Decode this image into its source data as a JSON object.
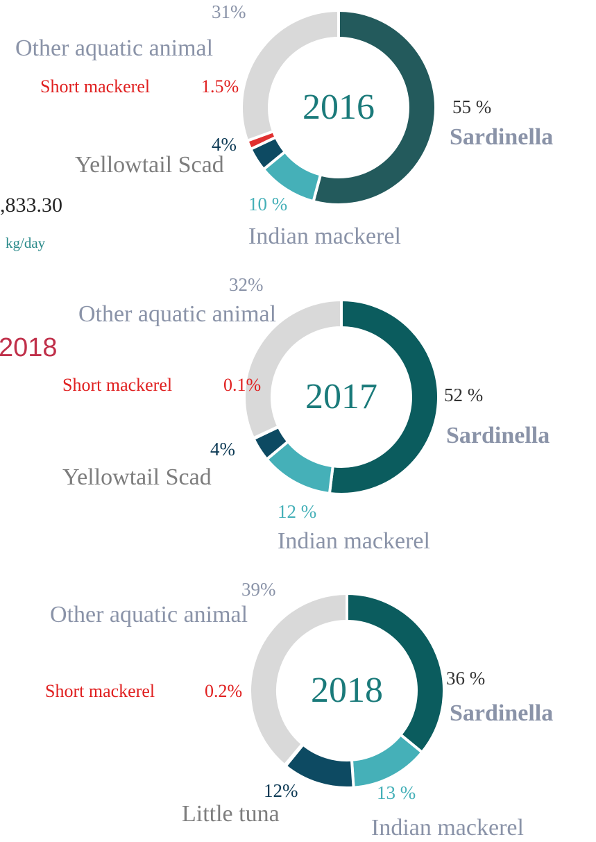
{
  "chart_data": [
    {
      "type": "pie",
      "donut": true,
      "center_label": "2016",
      "categories": [
        "Sardinella",
        "Indian  mackerel",
        "Yellowtail Scad",
        "Short mackerel",
        "Other aquatic animal"
      ],
      "values": [
        55,
        10,
        4,
        1.5,
        31
      ],
      "value_labels": [
        "55 %",
        "10 %",
        "4%",
        "1.5%",
        "31%"
      ],
      "colors": [
        "#235a5c",
        "#45b0b8",
        "#0d4a62",
        "#e03030",
        "#d9d9d9"
      ]
    },
    {
      "type": "pie",
      "donut": true,
      "center_label": "2017",
      "categories": [
        "Sardinella",
        "Indian  mackerel",
        "Yellowtail Scad",
        "Short mackerel",
        "Other aquatic animal"
      ],
      "values": [
        52,
        12,
        4,
        0.1,
        32
      ],
      "value_labels": [
        "52 %",
        "12 %",
        "4%",
        "0.1%",
        "32%"
      ],
      "colors": [
        "#0b5c5e",
        "#45b0b8",
        "#0d4a62",
        "#e03030",
        "#d9d9d9"
      ]
    },
    {
      "type": "pie",
      "donut": true,
      "center_label": "2018",
      "categories": [
        "Sardinella",
        "Indian  mackerel",
        "Little  tuna",
        "Short mackerel",
        "Other aquatic animal"
      ],
      "values": [
        36,
        13,
        12,
        0.2,
        39
      ],
      "value_labels": [
        "36 %",
        "13 %",
        "12%",
        "0.2%",
        "39%"
      ],
      "colors": [
        "#0b5c5e",
        "#45b0b8",
        "#0d4a62",
        "#e03030",
        "#d9d9d9"
      ]
    }
  ],
  "side_texts": [
    ",833.30",
    "kg/day",
    "2018"
  ]
}
